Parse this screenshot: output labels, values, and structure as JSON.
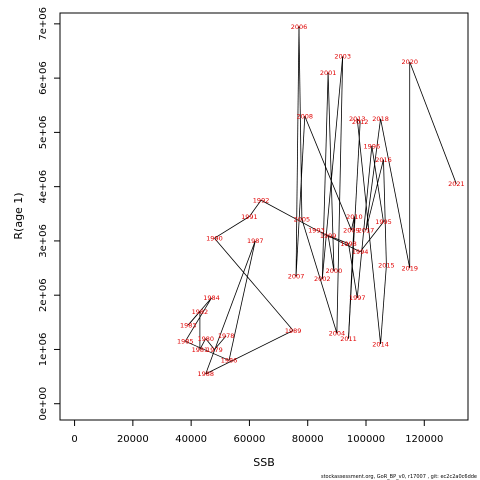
{
  "chart_data": {
    "type": "scatter",
    "xlabel": "SSB",
    "ylabel": "R(age 1)",
    "xlim": [
      -5000,
      135000
    ],
    "ylim": [
      -300000,
      7200000
    ],
    "x_ticks": [
      0,
      20000,
      40000,
      60000,
      80000,
      100000,
      120000
    ],
    "x_tick_labels": [
      "0",
      "20000",
      "40000",
      "60000",
      "80000",
      "100000",
      "120000"
    ],
    "y_ticks": [
      0,
      1000000,
      2000000,
      3000000,
      4000000,
      5000000,
      6000000,
      7000000
    ],
    "y_tick_labels": [
      "0e+00",
      "1e+06",
      "2e+06",
      "3e+06",
      "4e+06",
      "5e+06",
      "6e+06",
      "7e+06"
    ],
    "connect_points": true,
    "label_color": "#e00000",
    "line_color": "#000000",
    "points": [
      {
        "year": "1978",
        "x": 52000,
        "y": 1250000
      },
      {
        "year": "1979",
        "x": 48000,
        "y": 1000000
      },
      {
        "year": "1980",
        "x": 45000,
        "y": 1200000
      },
      {
        "year": "1981",
        "x": 43000,
        "y": 1000000
      },
      {
        "year": "1982",
        "x": 43000,
        "y": 1700000
      },
      {
        "year": "1983",
        "x": 39000,
        "y": 1450000
      },
      {
        "year": "1984",
        "x": 47000,
        "y": 1950000
      },
      {
        "year": "1985",
        "x": 38000,
        "y": 1150000
      },
      {
        "year": "1986",
        "x": 53000,
        "y": 800000
      },
      {
        "year": "1987",
        "x": 62000,
        "y": 3000000
      },
      {
        "year": "1988",
        "x": 45000,
        "y": 550000
      },
      {
        "year": "1989",
        "x": 75000,
        "y": 1350000
      },
      {
        "year": "1990",
        "x": 48000,
        "y": 3050000
      },
      {
        "year": "1991",
        "x": 60000,
        "y": 3450000
      },
      {
        "year": "1992",
        "x": 64000,
        "y": 3750000
      },
      {
        "year": "1993",
        "x": 83000,
        "y": 3200000
      },
      {
        "year": "1994",
        "x": 98000,
        "y": 2800000
      },
      {
        "year": "1995",
        "x": 106000,
        "y": 3350000
      },
      {
        "year": "1996",
        "x": 102000,
        "y": 4750000
      },
      {
        "year": "1997",
        "x": 97000,
        "y": 1950000
      },
      {
        "year": "1998",
        "x": 94000,
        "y": 2950000
      },
      {
        "year": "1999",
        "x": 87000,
        "y": 3100000
      },
      {
        "year": "2000",
        "x": 89000,
        "y": 2450000
      },
      {
        "year": "2001",
        "x": 87000,
        "y": 6100000
      },
      {
        "year": "2002",
        "x": 85000,
        "y": 2300000
      },
      {
        "year": "2003",
        "x": 92000,
        "y": 6400000
      },
      {
        "year": "2004",
        "x": 90000,
        "y": 1300000
      },
      {
        "year": "2005",
        "x": 78000,
        "y": 3400000
      },
      {
        "year": "2006",
        "x": 77000,
        "y": 6950000
      },
      {
        "year": "2007",
        "x": 76000,
        "y": 2350000
      },
      {
        "year": "2008",
        "x": 79000,
        "y": 5300000
      },
      {
        "year": "2009",
        "x": 95000,
        "y": 3200000
      },
      {
        "year": "2010",
        "x": 96000,
        "y": 3450000
      },
      {
        "year": "2011",
        "x": 94000,
        "y": 1200000
      },
      {
        "year": "2012",
        "x": 98000,
        "y": 5200000
      },
      {
        "year": "2013",
        "x": 97000,
        "y": 5250000
      },
      {
        "year": "2014",
        "x": 105000,
        "y": 1100000
      },
      {
        "year": "2015",
        "x": 107000,
        "y": 2550000
      },
      {
        "year": "2016",
        "x": 106000,
        "y": 4500000
      },
      {
        "year": "2017",
        "x": 100000,
        "y": 3200000
      },
      {
        "year": "2018",
        "x": 105000,
        "y": 5250000
      },
      {
        "year": "2019",
        "x": 115000,
        "y": 2500000
      },
      {
        "year": "2020",
        "x": 115000,
        "y": 6300000
      },
      {
        "year": "2021",
        "x": 131000,
        "y": 4050000
      }
    ]
  },
  "footer": {
    "text": "stockassessment.org, GoR_BP_v0, r17007 , git: ec2c2a0c6dde"
  }
}
